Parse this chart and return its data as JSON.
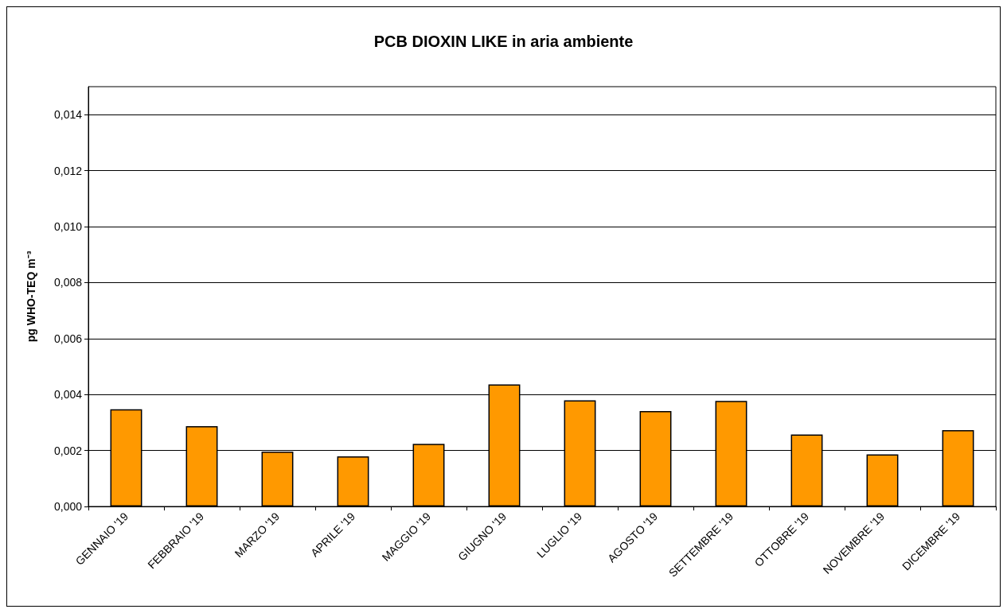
{
  "chart_data": {
    "type": "bar",
    "title": "PCB DIOXIN LIKE in aria ambiente",
    "ylabel": "pg WHO-TEQ m⁻³",
    "categories": [
      "GENNAIO '19",
      "FEBBRAIO '19",
      "MARZO '19",
      "APRILE '19",
      "MAGGIO '19",
      "GIUGNO '19",
      "LUGLIO '19",
      "AGOSTO '19",
      "SETTEMBRE '19",
      "OTTOBRE '19",
      "NOVEMBRE '19",
      "DICEMBRE '19"
    ],
    "values": [
      0.00347,
      0.00287,
      0.00196,
      0.00179,
      0.00224,
      0.00436,
      0.00379,
      0.00341,
      0.00377,
      0.00257,
      0.00186,
      0.00273
    ],
    "color": "#ff9900",
    "ylim": [
      0,
      0.015
    ],
    "yticks": [
      {
        "value": 0,
        "label": "0,000"
      },
      {
        "value": 0.002,
        "label": "0,002"
      },
      {
        "value": 0.004,
        "label": "0,004"
      },
      {
        "value": 0.006,
        "label": "0,006"
      },
      {
        "value": 0.008,
        "label": "0,008"
      },
      {
        "value": 0.01,
        "label": "0,010"
      },
      {
        "value": 0.012,
        "label": "0,012"
      },
      {
        "value": 0.014,
        "label": "0,014"
      }
    ],
    "grid": "y"
  }
}
